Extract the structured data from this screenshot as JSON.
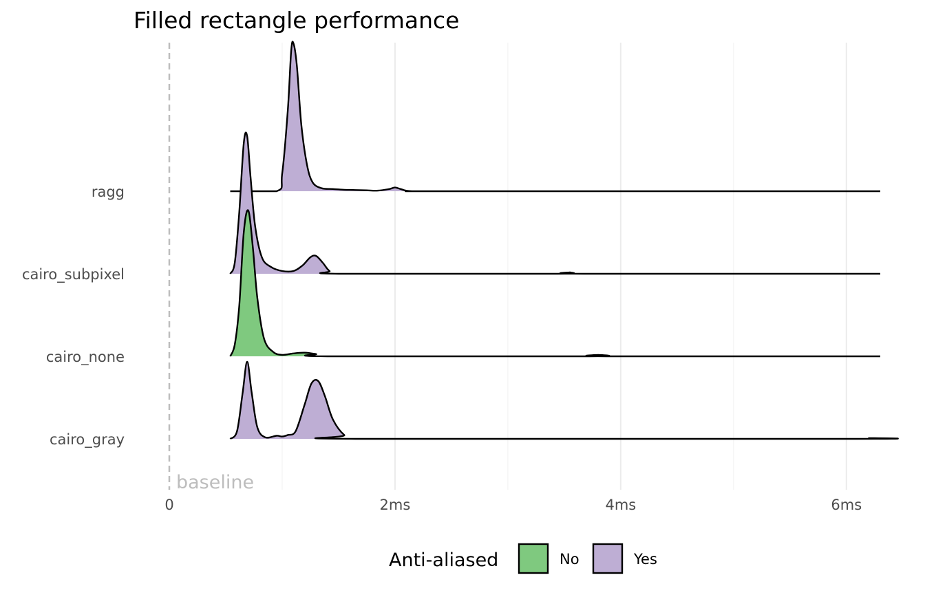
{
  "chart_data": {
    "type": "area",
    "subtype": "ridgeline-density",
    "title": "Filled rectangle performance",
    "xlabel": "",
    "ylabel": "",
    "xlim": [
      0,
      6.3
    ],
    "x_ticks": [
      {
        "value": 0,
        "label": "0"
      },
      {
        "value": 2,
        "label": "2ms"
      },
      {
        "value": 4,
        "label": "4ms"
      },
      {
        "value": 6,
        "label": "6ms"
      }
    ],
    "reference_line": {
      "x": 0,
      "label": "baseline",
      "style": "dashed"
    },
    "fill_colors": {
      "No": "#7fc97f",
      "Yes": "#beaed4"
    },
    "legend": {
      "title": "Anti-aliased",
      "position": "bottom",
      "items": [
        {
          "label": "No",
          "color": "#7fc97f"
        },
        {
          "label": "Yes",
          "color": "#beaed4"
        }
      ]
    },
    "grid": true,
    "series": [
      {
        "name": "ragg",
        "anti_aliased": "Yes",
        "x": [
          0.54,
          0.95,
          1.0,
          1.05,
          1.08,
          1.1,
          1.13,
          1.17,
          1.22,
          1.27,
          1.35,
          1.45,
          1.55,
          1.65,
          1.75,
          1.85,
          1.95,
          2.0,
          2.05,
          2.15,
          2.5,
          6.3
        ],
        "density": [
          0.0,
          0.0,
          0.12,
          0.55,
          0.95,
          1.0,
          0.85,
          0.45,
          0.18,
          0.06,
          0.02,
          0.015,
          0.01,
          0.008,
          0.006,
          0.004,
          0.015,
          0.025,
          0.015,
          0.0,
          0.0,
          0.0
        ]
      },
      {
        "name": "cairo_subpixel",
        "anti_aliased": "Yes",
        "x": [
          0.54,
          0.58,
          0.62,
          0.66,
          0.69,
          0.72,
          0.76,
          0.82,
          0.9,
          1.0,
          1.1,
          1.18,
          1.25,
          1.3,
          1.36,
          1.42,
          1.5,
          3.4,
          3.55,
          3.7,
          6.3
        ],
        "density": [
          0.0,
          0.08,
          0.45,
          0.95,
          1.0,
          0.7,
          0.35,
          0.12,
          0.05,
          0.02,
          0.02,
          0.06,
          0.12,
          0.13,
          0.08,
          0.02,
          0.0,
          0.0,
          0.01,
          0.0,
          0.0
        ]
      },
      {
        "name": "cairo_none",
        "anti_aliased": "No",
        "x": [
          0.54,
          0.58,
          0.62,
          0.66,
          0.7,
          0.74,
          0.78,
          0.84,
          0.92,
          1.0,
          1.1,
          1.2,
          1.3,
          1.4,
          3.7,
          3.8,
          3.9,
          6.3
        ],
        "density": [
          0.0,
          0.08,
          0.35,
          0.85,
          1.0,
          0.75,
          0.4,
          0.12,
          0.03,
          0.01,
          0.02,
          0.025,
          0.015,
          0.0,
          0.0,
          0.01,
          0.0,
          0.0
        ]
      },
      {
        "name": "cairo_gray",
        "anti_aliased": "Yes",
        "x": [
          0.54,
          0.6,
          0.65,
          0.69,
          0.73,
          0.78,
          0.85,
          0.95,
          1.0,
          1.05,
          1.12,
          1.2,
          1.26,
          1.32,
          1.38,
          1.45,
          1.55,
          1.65,
          6.1,
          6.2,
          6.3
        ],
        "density": [
          0.0,
          0.1,
          0.6,
          1.0,
          0.6,
          0.15,
          0.02,
          0.04,
          0.03,
          0.05,
          0.1,
          0.45,
          0.72,
          0.75,
          0.55,
          0.25,
          0.05,
          0.0,
          0.0,
          0.01,
          0.0
        ]
      }
    ]
  }
}
